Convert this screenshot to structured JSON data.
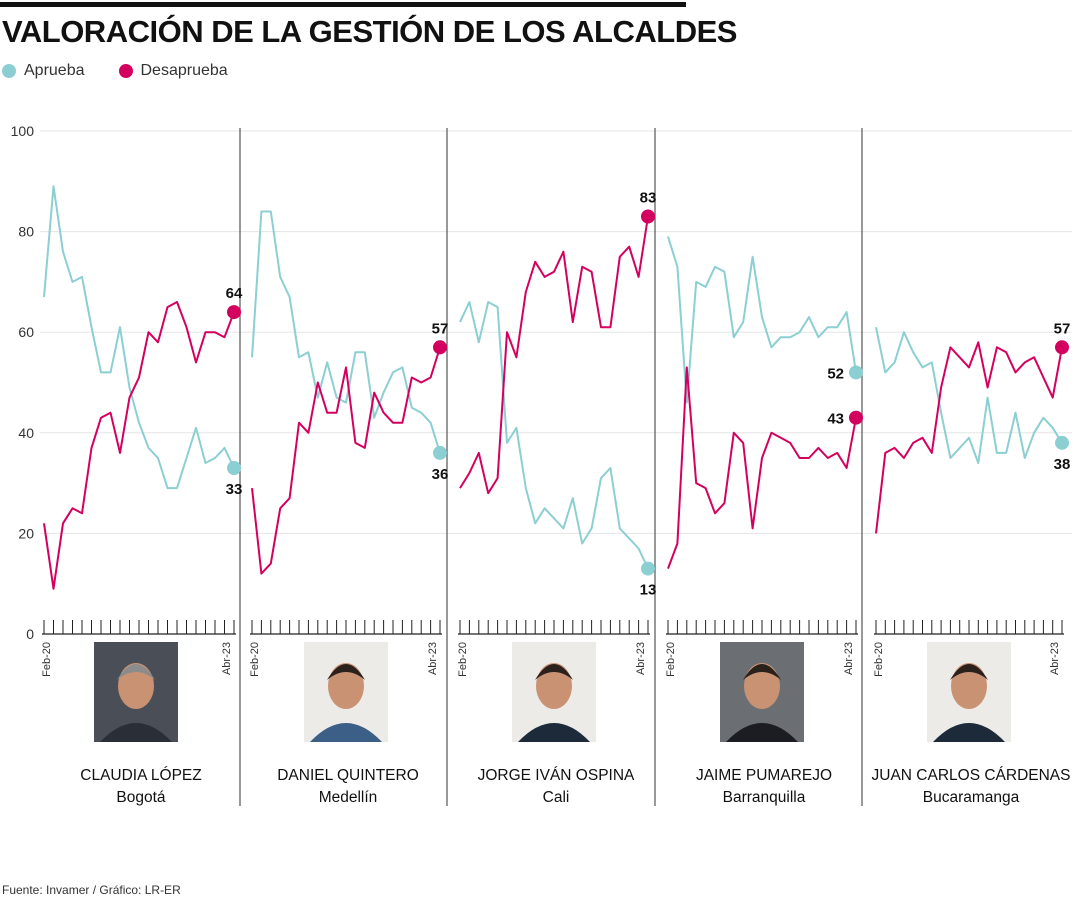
{
  "title": "VALORACIÓN DE LA GESTIÓN DE LOS ALCALDES",
  "legend": [
    {
      "label": "Aprueba",
      "color": "#8ccfd3"
    },
    {
      "label": "Desaprueba",
      "color": "#d4005f"
    }
  ],
  "footer": "Fuente: Invamer / Gráfico: LR-ER",
  "colors": {
    "aprueba": "#8ccfd3",
    "desaprueba": "#d4005f",
    "grid": "#e5e5e5",
    "divider": "#555555"
  },
  "chart_data": {
    "type": "line",
    "yticks": [
      "0",
      "20",
      "40",
      "60",
      "80",
      "100"
    ],
    "ylim": [
      0,
      100
    ],
    "x_start_label": "Feb-20",
    "x_end_label": "Abr-23",
    "grid": true,
    "panels": [
      {
        "name": "CLAUDIA LÓPEZ",
        "city": "Bogotá",
        "portrait": "portrait-woman-icon",
        "series": [
          {
            "name": "Aprueba",
            "end_label": "33",
            "values": [
              67,
              89,
              76,
              70,
              71,
              61,
              52,
              52,
              61,
              49,
              42,
              37,
              35,
              29,
              29,
              35,
              41,
              34,
              35,
              37,
              33
            ]
          },
          {
            "name": "Desaprueba",
            "end_label": "64",
            "values": [
              22,
              9,
              22,
              25,
              24,
              37,
              43,
              44,
              36,
              47,
              51,
              60,
              58,
              65,
              66,
              61,
              54,
              60,
              60,
              59,
              64
            ]
          }
        ]
      },
      {
        "name": "DANIEL QUINTERO",
        "city": "Medellín",
        "portrait": "portrait-man-icon",
        "series": [
          {
            "name": "Aprueba",
            "end_label": "36",
            "values": [
              55,
              84,
              84,
              71,
              67,
              55,
              56,
              47,
              54,
              47,
              46,
              56,
              56,
              43,
              48,
              52,
              53,
              45,
              44,
              42,
              36
            ]
          },
          {
            "name": "Desaprueba",
            "end_label": "57",
            "values": [
              29,
              12,
              14,
              25,
              27,
              42,
              40,
              50,
              44,
              44,
              53,
              38,
              37,
              48,
              44,
              42,
              42,
              51,
              50,
              51,
              57
            ]
          }
        ]
      },
      {
        "name": "JORGE IVÁN OSPINA",
        "city": "Cali",
        "portrait": "portrait-man-icon",
        "series": [
          {
            "name": "Aprueba",
            "end_label": "13",
            "values": [
              62,
              66,
              58,
              66,
              65,
              38,
              41,
              29,
              22,
              25,
              23,
              21,
              27,
              18,
              21,
              31,
              33,
              21,
              19,
              17,
              13
            ]
          },
          {
            "name": "Desaprueba",
            "end_label": "83",
            "values": [
              29,
              32,
              36,
              28,
              31,
              60,
              55,
              68,
              74,
              71,
              72,
              76,
              62,
              73,
              72,
              61,
              61,
              75,
              77,
              71,
              83
            ]
          }
        ]
      },
      {
        "name": "JAIME PUMAREJO",
        "city": "Barranquilla",
        "portrait": "portrait-man-icon",
        "series": [
          {
            "name": "Aprueba",
            "end_label": "52",
            "values": [
              79,
              73,
              46,
              70,
              69,
              73,
              72,
              59,
              62,
              75,
              63,
              57,
              59,
              59,
              60,
              63,
              59,
              61,
              61,
              64,
              52
            ]
          },
          {
            "name": "Desaprueba",
            "end_label": "43",
            "values": [
              13,
              18,
              53,
              30,
              29,
              24,
              26,
              40,
              38,
              21,
              35,
              40,
              39,
              38,
              35,
              35,
              37,
              35,
              36,
              33,
              43
            ]
          }
        ]
      },
      {
        "name": "JUAN CARLOS CÁRDENAS",
        "city": "Bucaramanga",
        "portrait": "portrait-man-icon",
        "series": [
          {
            "name": "Aprueba",
            "end_label": "38",
            "values": [
              61,
              52,
              54,
              60,
              56,
              53,
              54,
              44,
              35,
              37,
              39,
              34,
              47,
              36,
              36,
              44,
              35,
              40,
              43,
              41,
              38
            ]
          },
          {
            "name": "Desaprueba",
            "end_label": "57",
            "values": [
              20,
              36,
              37,
              35,
              38,
              39,
              36,
              49,
              57,
              55,
              53,
              58,
              49,
              57,
              56,
              52,
              54,
              55,
              51,
              47,
              57
            ]
          }
        ]
      }
    ]
  }
}
